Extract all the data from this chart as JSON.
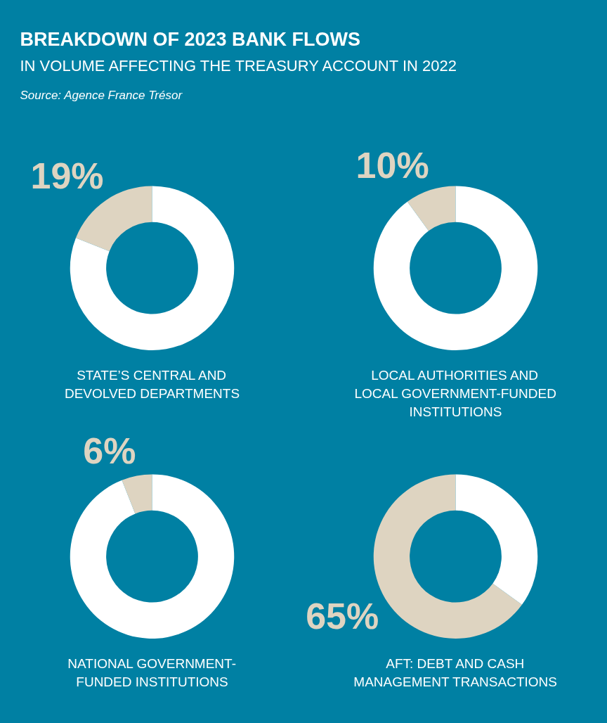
{
  "chart_data": [
    {
      "type": "other",
      "title": "BREAKDOWN OF 2023 BANK FLOWS",
      "subtitle": "IN VOLUME AFFECTING THE TREASURY ACCOUNT IN 2022",
      "annotations": [
        "Source: Agence France Trésor"
      ]
    },
    {
      "type": "donut",
      "title": "STATE’S CENTRAL AND\nDEVOLVED DEPARTMENTS",
      "categories": [
        null,
        null
      ],
      "values": [
        19,
        81
      ],
      "colors": [
        "#ded4c1",
        "#ffffff"
      ],
      "value_labels": [
        "19%",
        null
      ]
    },
    {
      "type": "donut",
      "title": "LOCAL AUTHORITIES AND\nLOCAL GOVERNMENT-FUNDED\nINSTITUTIONS",
      "categories": [
        null,
        null
      ],
      "values": [
        10,
        90
      ],
      "colors": [
        "#ded4c1",
        "#ffffff"
      ],
      "value_labels": [
        "10%",
        null
      ]
    },
    {
      "type": "donut",
      "title": "NATIONAL GOVERNMENT-\nFUNDED INSTITUTIONS",
      "categories": [
        null,
        null
      ],
      "values": [
        6,
        94
      ],
      "colors": [
        "#ded4c1",
        "#ffffff"
      ],
      "value_labels": [
        "6%",
        null
      ]
    },
    {
      "type": "donut",
      "title": "AFT: DEBT AND CASH\nMANAGEMENT TRANSACTIONS",
      "categories": [
        null,
        null
      ],
      "values": [
        65,
        35
      ],
      "colors": [
        "#ded4c1",
        "#ffffff"
      ],
      "value_labels": [
        "65%",
        null
      ]
    }
  ]
}
